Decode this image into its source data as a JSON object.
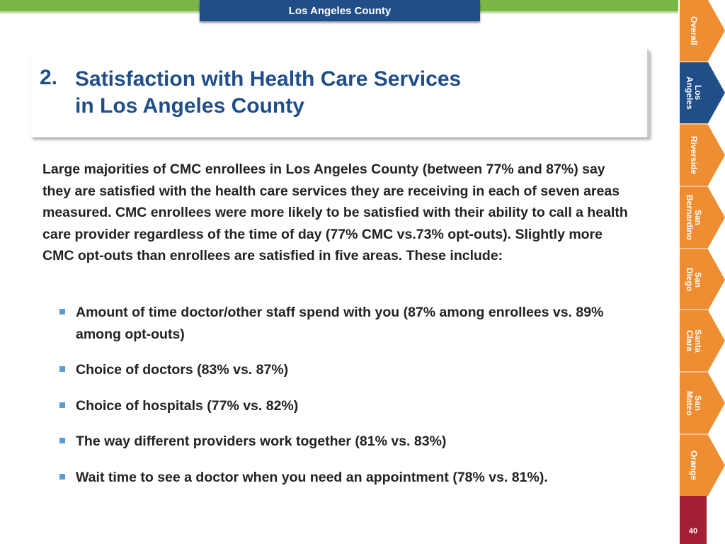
{
  "header": {
    "county_tab": "Los Angeles County"
  },
  "title": {
    "number": "2.",
    "line1": "Satisfaction with Health Care Services",
    "line2": "in Los Angeles County"
  },
  "body": {
    "paragraph": "Large majorities of CMC enrollees in Los Angeles County (between 77% and 87%) say they are satisfied with the health care services they are receiving in each of seven areas measured. CMC enrollees were more likely to be satisfied with their ability to call a health care provider regardless of the time of day (77% CMC vs.73% opt-outs). Slightly more CMC opt-outs than enrollees are satisfied in five areas. These include:",
    "bullets": [
      "Amount of time doctor/other staff spend with you (87% among enrollees vs. 89% among opt-outs)",
      "Choice of doctors (83% vs. 87%)",
      "Choice of hospitals (77% vs. 82%)",
      "The way different providers work together (81% vs. 83%)",
      "Wait time to see a doctor when you need an appointment (78% vs. 81%)."
    ]
  },
  "sidebar": {
    "tabs": [
      {
        "label": "Overall",
        "active": false
      },
      {
        "label": "Los\nAngeles",
        "active": true
      },
      {
        "label": "Riverside",
        "active": false
      },
      {
        "label": "San\nBernardino",
        "active": false
      },
      {
        "label": "San\nDiego",
        "active": false
      },
      {
        "label": "Santa\nClara",
        "active": false
      },
      {
        "label": "San\nMateo",
        "active": false
      },
      {
        "label": "Orange",
        "active": false
      }
    ]
  },
  "footer": {
    "page_number": "40"
  },
  "colors": {
    "brand_blue": "#1f4e89",
    "nav_orange": "#ee8d31",
    "top_green": "#7ab648",
    "page_red": "#a31f34",
    "bullet_blue": "#5b9bd5"
  }
}
